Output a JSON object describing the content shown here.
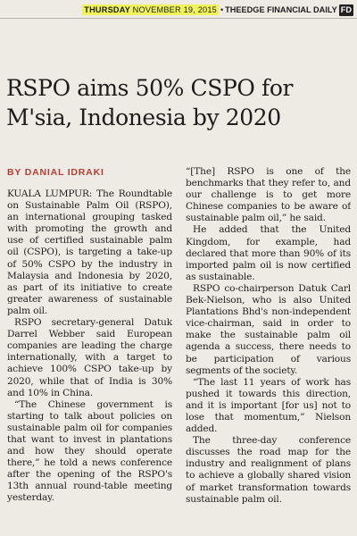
{
  "masthead": {
    "day": "THURSDAY",
    "date": "NOVEMBER 19, 2015",
    "separator": "•",
    "publication": "THEEDGE FINANCIAL DAILY",
    "page_logo": "FD"
  },
  "article": {
    "headline": "RSPO aims 50% CSPO for M'sia, Indonesia by 2020",
    "byline": "BY DANIAL IDRAKI",
    "left_column": [
      "KUALA LUMPUR: The Roundtable on Sustainable Palm Oil (RSPO), an international grouping tasked with promoting the growth and use of certified sustainable palm oil (CSPO), is targeting a take-up of 50% CSPO by the industry in Malaysia and Indonesia by 2020, as part of its initiative to create greater awareness of sustainable palm oil.",
      "RSPO secretary-general Datuk Darrel Webber said European companies are leading the charge internationally, with a target to achieve 100% CSPO take-up by 2020, while that of India is 30% and 10% in China.",
      "“The Chinese government is starting to talk about policies on sustainable palm oil for companies that want to invest in plantations and how they should operate there,” he told a news conference after the opening of the RSPO's 13th annual round-table meeting yesterday."
    ],
    "right_column": [
      "“[The] RSPO is one of the benchmarks that they refer to, and our challenge is to get more Chinese companies to be aware of sustainable palm oil,” he said.",
      "He added that the United Kingdom, for example, had declared that more than 90% of its imported palm oil is now certified as sustainable.",
      "RSPO co-chairperson Datuk Carl Bek-Nielson, who is also United Plantations Bhd's non-independent vice-chairman, said in order to make the sustainable palm oil agenda a success, there needs to be participation of various segments of the society.",
      "“The last 11 years of work has pushed it towards this direction, and it is important [for us] not to lose that momentum,” Nielson added.",
      "The three-day conference discusses the road map for the industry and realignment of plans to achieve a globally shared vision of market transformation towards sustainable palm oil."
    ]
  }
}
